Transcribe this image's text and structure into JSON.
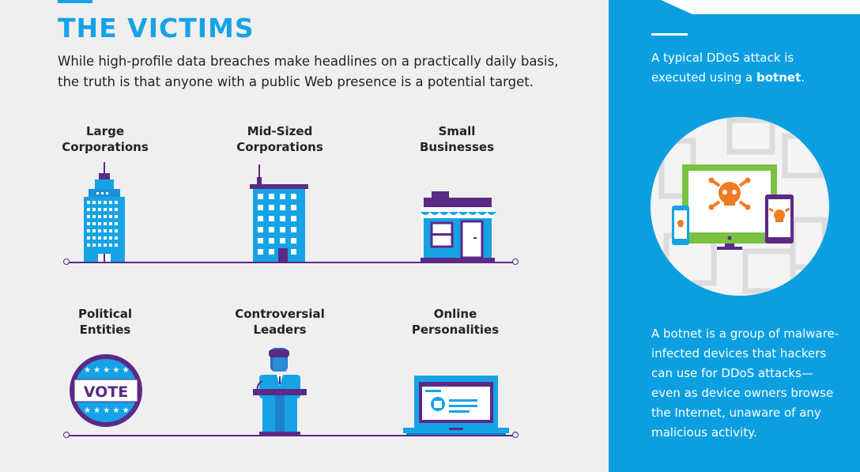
{
  "section": {
    "title": "THE VICTIMS",
    "intro_line1": "While high-profile data breaches make headlines on a practically daily basis,",
    "intro_line2": "the truth is that anyone with a public Web presence is a potential target."
  },
  "victims": [
    {
      "line1": "Large",
      "line2": "Corporations",
      "icon": "skyscraper-icon"
    },
    {
      "line1": "Mid-Sized",
      "line2": "Corporations",
      "icon": "office-building-icon"
    },
    {
      "line1": "Small",
      "line2": "Businesses",
      "icon": "storefront-icon"
    },
    {
      "line1": "Political",
      "line2": "Entities",
      "icon": "vote-badge-icon"
    },
    {
      "line1": "Controversial",
      "line2": "Leaders",
      "icon": "speaker-podium-icon"
    },
    {
      "line1": "Online",
      "line2": "Personalities",
      "icon": "laptop-profile-icon"
    }
  ],
  "vote_badge_text": "VOTE",
  "panel": {
    "intro_before": "A typical DDoS attack is",
    "intro_line2_before": "executed using a ",
    "intro_bold": "botnet",
    "intro_after": ".",
    "botnet_lines": [
      "A botnet is a group of malware-",
      "infected devices that hackers",
      "can use for DDoS attacks—",
      "even as device owners browse",
      "the Internet, unaware of any",
      "malicious activity."
    ]
  },
  "colors": {
    "accent_blue": "#16a3e6",
    "panel_blue": "#0b9fe2",
    "purple": "#5b2a86",
    "green": "#7ac142",
    "orange": "#f07b22"
  }
}
